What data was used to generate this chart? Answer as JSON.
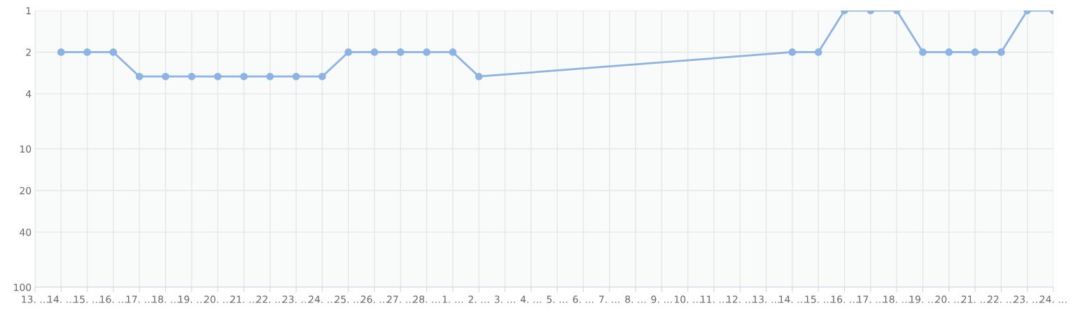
{
  "chart_data": {
    "type": "line",
    "categories": [
      "13. …",
      "14. …",
      "15. …",
      "16. …",
      "17. …",
      "18. …",
      "19. …",
      "20. …",
      "21. …",
      "22. …",
      "23. …",
      "24. …",
      "25. …",
      "26. …",
      "27. …",
      "28. …",
      "1. …",
      "2. …",
      "3. …",
      "4. …",
      "5. …",
      "6. …",
      "7. …",
      "8. …",
      "9. …",
      "10. …",
      "11. …",
      "12. …",
      "13. …",
      "14. …",
      "15. …",
      "16. …",
      "17. …",
      "18. …",
      "19. …",
      "20. …",
      "21. …",
      "22. …",
      "23. …",
      "24. …"
    ],
    "series": [
      {
        "color": "#8cb3e3",
        "values": [
          null,
          2,
          2,
          2,
          3,
          3,
          3,
          3,
          3,
          3,
          3,
          3,
          2,
          2,
          2,
          2,
          2,
          3,
          null,
          null,
          null,
          null,
          null,
          null,
          null,
          null,
          null,
          null,
          null,
          2,
          2,
          1,
          1,
          1,
          2,
          2,
          2,
          2,
          1,
          1
        ]
      }
    ],
    "log": "y",
    "ylim": [
      100,
      1
    ],
    "yticks": [
      1,
      2,
      4,
      10,
      20,
      40,
      100
    ],
    "grid": true,
    "marker": "circle",
    "line_style": "solid",
    "legend": false
  }
}
